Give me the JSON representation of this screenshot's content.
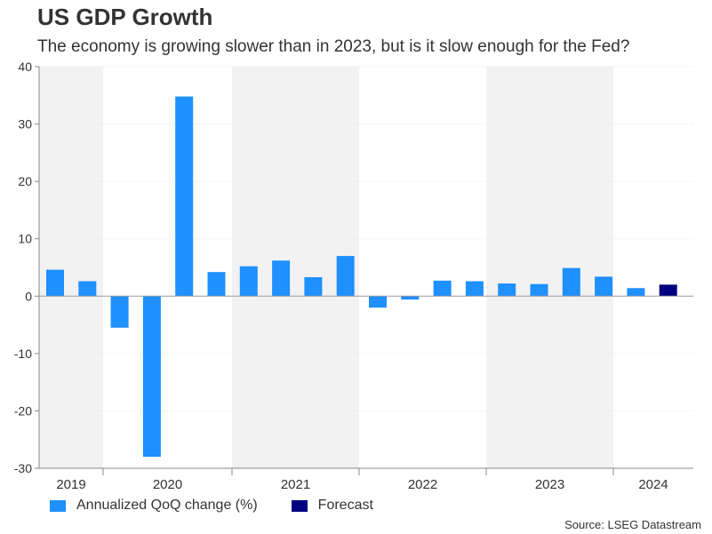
{
  "title": "US GDP Growth",
  "subtitle": "The economy is growing slower than in 2023, but is it slow enough for the Fed?",
  "source": "Source: LSEG Datastream",
  "colors": {
    "actual": "#1e90ff",
    "forecast": "#000080",
    "band": "#f2f2f2",
    "axis": "#888888"
  },
  "chart_data": {
    "type": "bar",
    "ylim": [
      -30,
      40
    ],
    "yticks": [
      "-30",
      "-20",
      "-10",
      "0",
      "10",
      "20",
      "30",
      "40"
    ],
    "ytick_values": [
      -30,
      -20,
      -10,
      0,
      10,
      20,
      30,
      40
    ],
    "years": [
      "2019",
      "2020",
      "2021",
      "2022",
      "2023",
      "2024"
    ],
    "bars": [
      {
        "year": "2019",
        "quarter": "Q2",
        "value": 4.6,
        "type": "actual"
      },
      {
        "year": "2019",
        "quarter": "Q4",
        "value": 2.6,
        "type": "actual"
      },
      {
        "year": "2020",
        "quarter": "Q1",
        "value": -5.5,
        "type": "actual"
      },
      {
        "year": "2020",
        "quarter": "Q2",
        "value": -28.0,
        "type": "actual"
      },
      {
        "year": "2020",
        "quarter": "Q3",
        "value": 34.8,
        "type": "actual"
      },
      {
        "year": "2020",
        "quarter": "Q4",
        "value": 4.2,
        "type": "actual"
      },
      {
        "year": "2021",
        "quarter": "Q1",
        "value": 5.2,
        "type": "actual"
      },
      {
        "year": "2021",
        "quarter": "Q2",
        "value": 6.2,
        "type": "actual"
      },
      {
        "year": "2021",
        "quarter": "Q3",
        "value": 3.3,
        "type": "actual"
      },
      {
        "year": "2021",
        "quarter": "Q4",
        "value": 7.0,
        "type": "actual"
      },
      {
        "year": "2022",
        "quarter": "Q1",
        "value": -2.0,
        "type": "actual"
      },
      {
        "year": "2022",
        "quarter": "Q2",
        "value": -0.6,
        "type": "actual"
      },
      {
        "year": "2022",
        "quarter": "Q3",
        "value": 2.7,
        "type": "actual"
      },
      {
        "year": "2022",
        "quarter": "Q4",
        "value": 2.6,
        "type": "actual"
      },
      {
        "year": "2023",
        "quarter": "Q1",
        "value": 2.2,
        "type": "actual"
      },
      {
        "year": "2023",
        "quarter": "Q2",
        "value": 2.1,
        "type": "actual"
      },
      {
        "year": "2023",
        "quarter": "Q3",
        "value": 4.9,
        "type": "actual"
      },
      {
        "year": "2023",
        "quarter": "Q4",
        "value": 3.4,
        "type": "actual"
      },
      {
        "year": "2024",
        "quarter": "Q1",
        "value": 1.4,
        "type": "actual"
      },
      {
        "year": "2024",
        "quarter": "Q2",
        "value": 2.0,
        "type": "forecast"
      }
    ],
    "legend": [
      {
        "label": "Annualized QoQ change (%)",
        "type": "actual"
      },
      {
        "label": "Forecast",
        "type": "forecast"
      }
    ],
    "legend_position": "bottom-left",
    "grid": true
  }
}
